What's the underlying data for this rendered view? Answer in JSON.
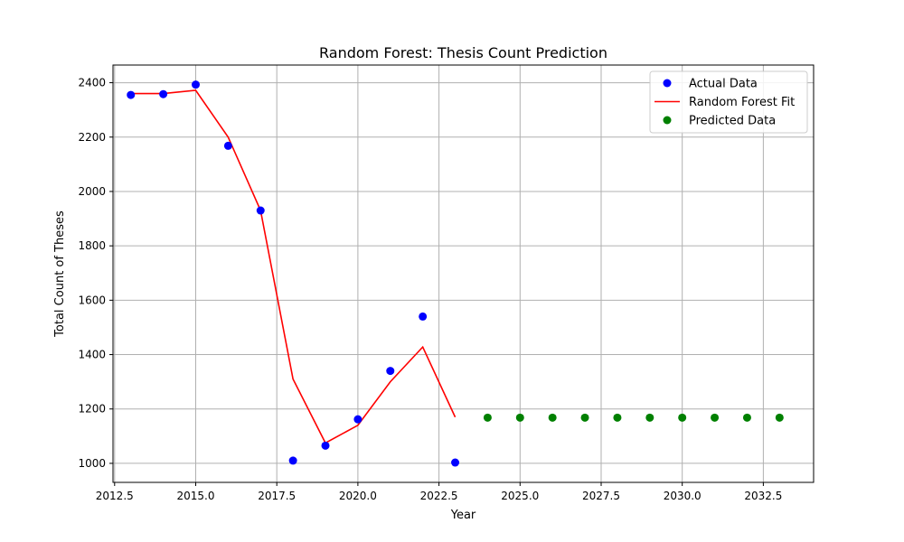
{
  "chart_data": {
    "type": "scatter",
    "title": "Random Forest: Thesis Count Prediction",
    "xlabel": "Year",
    "ylabel": "Total Count of Theses",
    "xlim": [
      2012.45,
      2034.05
    ],
    "ylim": [
      930,
      2465
    ],
    "xticks": [
      2012.5,
      2015.0,
      2017.5,
      2020.0,
      2022.5,
      2025.0,
      2027.5,
      2030.0,
      2032.5
    ],
    "xtick_labels": [
      "2012.5",
      "2015.0",
      "2017.5",
      "2020.0",
      "2022.5",
      "2025.0",
      "2027.5",
      "2030.0",
      "2032.5"
    ],
    "yticks": [
      1000,
      1200,
      1400,
      1600,
      1800,
      2000,
      2200,
      2400
    ],
    "ytick_labels": [
      "1000",
      "1200",
      "1400",
      "1600",
      "1800",
      "2000",
      "2200",
      "2400"
    ],
    "grid": true,
    "legend_position": "top-right",
    "series": [
      {
        "name": "Actual Data",
        "kind": "scatter",
        "color": "#0000ff",
        "x": [
          2013,
          2014,
          2015,
          2016,
          2017,
          2018,
          2019,
          2020,
          2021,
          2022,
          2023
        ],
        "y": [
          2355,
          2358,
          2393,
          2168,
          1930,
          1010,
          1065,
          1162,
          1340,
          1540,
          1003
        ]
      },
      {
        "name": "Random Forest Fit",
        "kind": "line",
        "color": "#ff0000",
        "x": [
          2013,
          2014,
          2015,
          2016,
          2017,
          2018,
          2019,
          2020,
          2021,
          2022,
          2023
        ],
        "y": [
          2360,
          2360,
          2372,
          2200,
          1930,
          1310,
          1075,
          1140,
          1300,
          1428,
          1170
        ]
      },
      {
        "name": "Predicted Data",
        "kind": "scatter",
        "color": "#008000",
        "x": [
          2024,
          2025,
          2026,
          2027,
          2028,
          2029,
          2030,
          2031,
          2032,
          2033
        ],
        "y": [
          1168,
          1168,
          1168,
          1168,
          1168,
          1168,
          1168,
          1168,
          1168,
          1168
        ]
      }
    ]
  }
}
